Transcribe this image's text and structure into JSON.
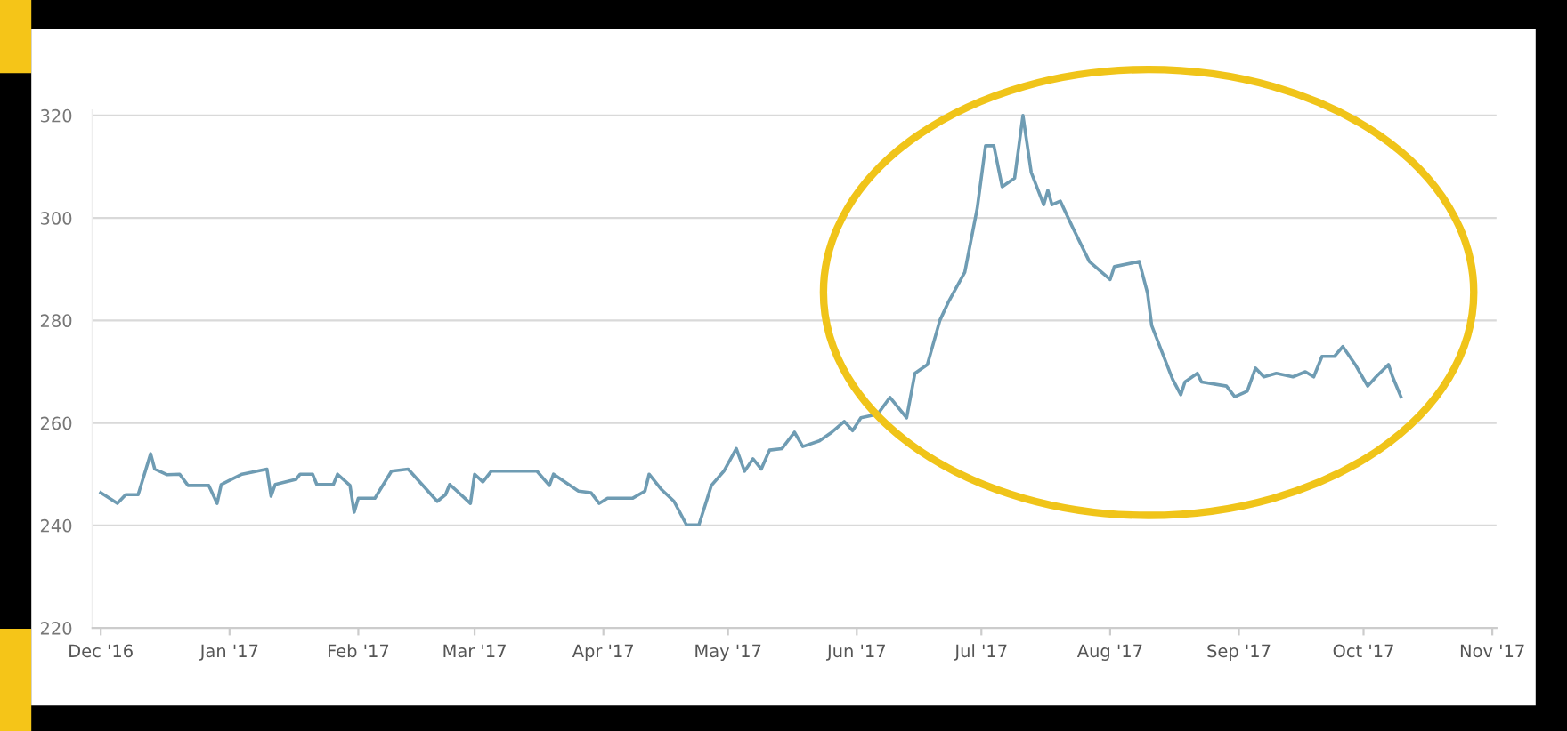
{
  "chart_data": {
    "type": "line",
    "xlim": [
      "2016-11-29",
      "2017-11-02"
    ],
    "ylim": [
      220,
      321
    ],
    "yticks": [
      220,
      240,
      260,
      280,
      300,
      320
    ],
    "xticks": [
      {
        "value": "2016-12-01",
        "label": "Dec '16"
      },
      {
        "value": "2017-01-01",
        "label": "Jan '17"
      },
      {
        "value": "2017-02-01",
        "label": "Feb '17"
      },
      {
        "value": "2017-03-01",
        "label": "Mar '17"
      },
      {
        "value": "2017-04-01",
        "label": "Apr '17"
      },
      {
        "value": "2017-05-01",
        "label": "May '17"
      },
      {
        "value": "2017-06-01",
        "label": "Jun '17"
      },
      {
        "value": "2017-07-01",
        "label": "Jul '17"
      },
      {
        "value": "2017-08-01",
        "label": "Aug '17"
      },
      {
        "value": "2017-09-01",
        "label": "Sep '17"
      },
      {
        "value": "2017-10-01",
        "label": "Oct '17"
      },
      {
        "value": "2017-11-01",
        "label": "Nov '17"
      }
    ],
    "grid": "y",
    "marker": "none",
    "line_style": "solid",
    "series": [
      {
        "color": "#6f9cb3",
        "x": [
          "2016-12-01",
          "2016-12-05",
          "2016-12-07",
          "2016-12-10",
          "2016-12-13",
          "2016-12-14",
          "2016-12-17",
          "2016-12-20",
          "2016-12-22",
          "2016-12-27",
          "2016-12-29",
          "2016-12-30",
          "2017-01-04",
          "2017-01-10",
          "2017-01-11",
          "2017-01-12",
          "2017-01-17",
          "2017-01-18",
          "2017-01-21",
          "2017-01-22",
          "2017-01-26",
          "2017-01-27",
          "2017-01-30",
          "2017-01-31",
          "2017-02-01",
          "2017-02-05",
          "2017-02-09",
          "2017-02-13",
          "2017-02-20",
          "2017-02-22",
          "2017-02-23",
          "2017-02-28",
          "2017-03-01",
          "2017-03-03",
          "2017-03-05",
          "2017-03-16",
          "2017-03-19",
          "2017-03-20",
          "2017-03-26",
          "2017-03-29",
          "2017-03-31",
          "2017-04-02",
          "2017-04-08",
          "2017-04-11",
          "2017-04-12",
          "2017-04-15",
          "2017-04-18",
          "2017-04-21",
          "2017-04-24",
          "2017-04-27",
          "2017-04-30",
          "2017-05-03",
          "2017-05-05",
          "2017-05-07",
          "2017-05-09",
          "2017-05-11",
          "2017-05-14",
          "2017-05-17",
          "2017-05-19",
          "2017-05-23",
          "2017-05-26",
          "2017-05-29",
          "2017-05-31",
          "2017-06-02",
          "2017-06-06",
          "2017-06-09",
          "2017-06-13",
          "2017-06-15",
          "2017-06-18",
          "2017-06-21",
          "2017-06-23",
          "2017-06-27",
          "2017-06-30",
          "2017-07-02",
          "2017-07-04",
          "2017-07-06",
          "2017-07-09",
          "2017-07-11",
          "2017-07-13",
          "2017-07-16",
          "2017-07-17",
          "2017-07-18",
          "2017-07-20",
          "2017-07-23",
          "2017-07-27",
          "2017-08-01",
          "2017-08-02",
          "2017-08-08",
          "2017-08-10",
          "2017-08-11",
          "2017-08-16",
          "2017-08-18",
          "2017-08-19",
          "2017-08-22",
          "2017-08-23",
          "2017-08-29",
          "2017-08-31",
          "2017-09-03",
          "2017-09-05",
          "2017-09-07",
          "2017-09-10",
          "2017-09-14",
          "2017-09-17",
          "2017-09-19",
          "2017-09-21",
          "2017-09-24",
          "2017-09-26",
          "2017-09-29",
          "2017-10-02",
          "2017-10-04",
          "2017-10-07",
          "2017-10-08",
          "2017-10-10"
        ],
        "values": [
          246.4,
          244.3,
          246.0,
          246.0,
          254.0,
          251.0,
          249.9,
          250.0,
          247.8,
          247.8,
          244.3,
          248.0,
          250.0,
          251.0,
          245.7,
          248.0,
          249.0,
          250.0,
          250.0,
          248.0,
          248.0,
          250.0,
          247.8,
          242.6,
          245.3,
          245.3,
          250.6,
          251.0,
          244.7,
          246.0,
          248.0,
          244.3,
          250.0,
          248.5,
          250.6,
          250.6,
          247.8,
          250.0,
          246.7,
          246.4,
          244.3,
          245.3,
          245.3,
          246.7,
          250.0,
          247.0,
          244.7,
          240.1,
          240.1,
          247.8,
          250.6,
          255.0,
          250.6,
          253.0,
          251.0,
          254.7,
          255.0,
          258.2,
          255.4,
          256.5,
          258.2,
          260.3,
          258.5,
          261.0,
          261.7,
          265.0,
          261.0,
          269.7,
          271.4,
          280.0,
          283.5,
          289.4,
          301.9,
          314.1,
          314.1,
          306.1,
          307.8,
          320.0,
          308.9,
          302.6,
          305.4,
          302.6,
          303.3,
          298.1,
          291.5,
          288.0,
          290.5,
          291.5,
          285.3,
          279.0,
          268.6,
          265.5,
          268.0,
          269.7,
          268.0,
          267.2,
          265.1,
          266.2,
          270.7,
          269.0,
          269.7,
          269.0,
          270.0,
          269.0,
          273.0,
          273.0,
          274.9,
          271.4,
          267.2,
          269.0,
          271.4,
          269.0,
          265.1
        ]
      }
    ]
  }
}
